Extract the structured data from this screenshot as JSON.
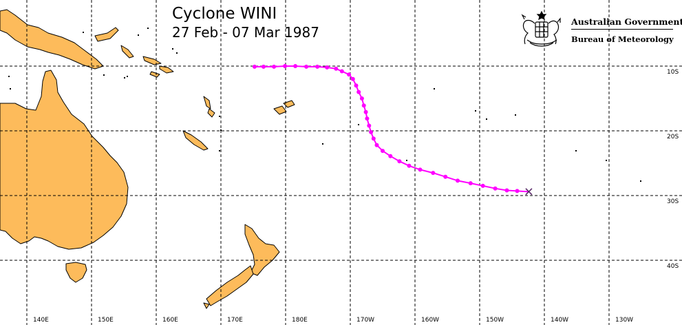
{
  "title": "Cyclone WINI",
  "subtitle": "27 Feb - 07 Mar 1987",
  "agency": {
    "line1": "Australian Government",
    "line2": "Bureau of Meteorology"
  },
  "colors": {
    "land": "#FDBB5B",
    "coast": "#000000",
    "grid": "#000000",
    "track": "#FF00FF",
    "end_marker": "#5A2A6A"
  },
  "longitude_labels": [
    "140E",
    "150E",
    "160E",
    "170E",
    "180E",
    "170W",
    "160W",
    "150W",
    "140W",
    "130W"
  ],
  "latitude_labels": [
    "10S",
    "20S",
    "30S",
    "40S"
  ],
  "track_points": [
    {
      "lon": 175.2,
      "lat": -10.1
    },
    {
      "lon": 176.6,
      "lat": -10.1
    },
    {
      "lon": 178.2,
      "lat": -10.1
    },
    {
      "lon": 179.9,
      "lat": -10.0
    },
    {
      "lon": 181.5,
      "lat": -10.0
    },
    {
      "lon": 183.2,
      "lat": -10.1
    },
    {
      "lon": 184.9,
      "lat": -10.1
    },
    {
      "lon": 186.4,
      "lat": -10.2
    },
    {
      "lon": 187.8,
      "lat": -10.4
    },
    {
      "lon": 188.7,
      "lat": -10.8
    },
    {
      "lon": 189.8,
      "lat": -11.3
    },
    {
      "lon": 190.4,
      "lat": -12.0
    },
    {
      "lon": 190.9,
      "lat": -13.0
    },
    {
      "lon": 191.3,
      "lat": -14.0
    },
    {
      "lon": 191.8,
      "lat": -15.0
    },
    {
      "lon": 192.1,
      "lat": -16.1
    },
    {
      "lon": 192.4,
      "lat": -17.1
    },
    {
      "lon": 192.6,
      "lat": -18.1
    },
    {
      "lon": 192.9,
      "lat": -19.2
    },
    {
      "lon": 193.2,
      "lat": -20.2
    },
    {
      "lon": 193.6,
      "lat": -21.2
    },
    {
      "lon": 194.1,
      "lat": -22.2
    },
    {
      "lon": 195.0,
      "lat": -23.1
    },
    {
      "lon": 196.2,
      "lat": -23.9
    },
    {
      "lon": 197.6,
      "lat": -24.7
    },
    {
      "lon": 199.1,
      "lat": -25.4
    },
    {
      "lon": 200.8,
      "lat": -26.0
    },
    {
      "lon": 202.8,
      "lat": -26.5
    },
    {
      "lon": 204.7,
      "lat": -27.1
    },
    {
      "lon": 206.6,
      "lat": -27.7
    },
    {
      "lon": 208.6,
      "lat": -28.1
    },
    {
      "lon": 210.5,
      "lat": -28.5
    },
    {
      "lon": 212.4,
      "lat": -28.9
    },
    {
      "lon": 214.2,
      "lat": -29.2
    },
    {
      "lon": 215.8,
      "lat": -29.3
    }
  ],
  "end_point": {
    "lon": 217.6,
    "lat": -29.4
  }
}
